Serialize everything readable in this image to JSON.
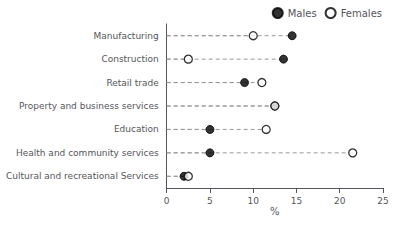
{
  "chart_data": {
    "type": "dot",
    "orientation": "horizontal",
    "categories": [
      "Manufacturing",
      "Construction",
      "Retail trade",
      "Property and business services",
      "Education",
      "Health and community services",
      "Cultural and recreational Services"
    ],
    "series": [
      {
        "name": "Males",
        "color": "#000000",
        "marker": "filled",
        "values": [
          14.5,
          13.5,
          9.0,
          12.5,
          5.0,
          5.0,
          2.0
        ]
      },
      {
        "name": "Females",
        "color": "#000000",
        "marker": "hollow",
        "values": [
          10.0,
          2.5,
          11.0,
          12.5,
          11.5,
          21.5,
          2.5
        ]
      }
    ],
    "xlabel": "%",
    "xlim": [
      0,
      25
    ],
    "xticks": [
      0,
      5,
      10,
      15,
      20,
      25
    ],
    "color": "#999999",
    "line_style": "dashed",
    "grid": false,
    "legend": "top"
  }
}
